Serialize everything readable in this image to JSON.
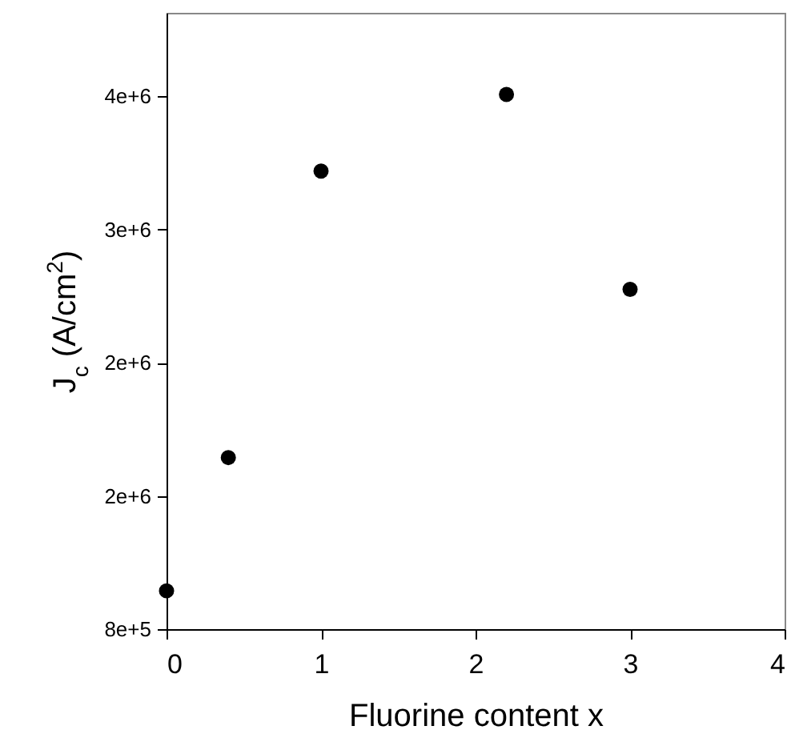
{
  "chart_data": {
    "type": "scatter",
    "xlabel": "Fluorine content x",
    "ylabel": "J$_{c}$ (A/cm$^{2}$)",
    "x": [
      0,
      0.4,
      1,
      2.2,
      3
    ],
    "series": [
      {
        "color": "#000000",
        "values": [
          1030000,
          1830000,
          3550000,
          4010000,
          2840000
        ]
      }
    ],
    "xlim": [
      0,
      4
    ],
    "xticks": [
      0,
      1,
      2,
      3,
      4
    ],
    "ylim": [
      800000,
      4500000
    ],
    "yticks": [
      {
        "value": 800000,
        "label": "8e+5"
      },
      {
        "value": 1600000,
        "label": "2e+6"
      },
      {
        "value": 2400000,
        "label": "2e+6"
      },
      {
        "value": 3200000,
        "label": "3e+6"
      },
      {
        "value": 4000000,
        "label": "4e+6"
      }
    ],
    "marker": "circle"
  }
}
